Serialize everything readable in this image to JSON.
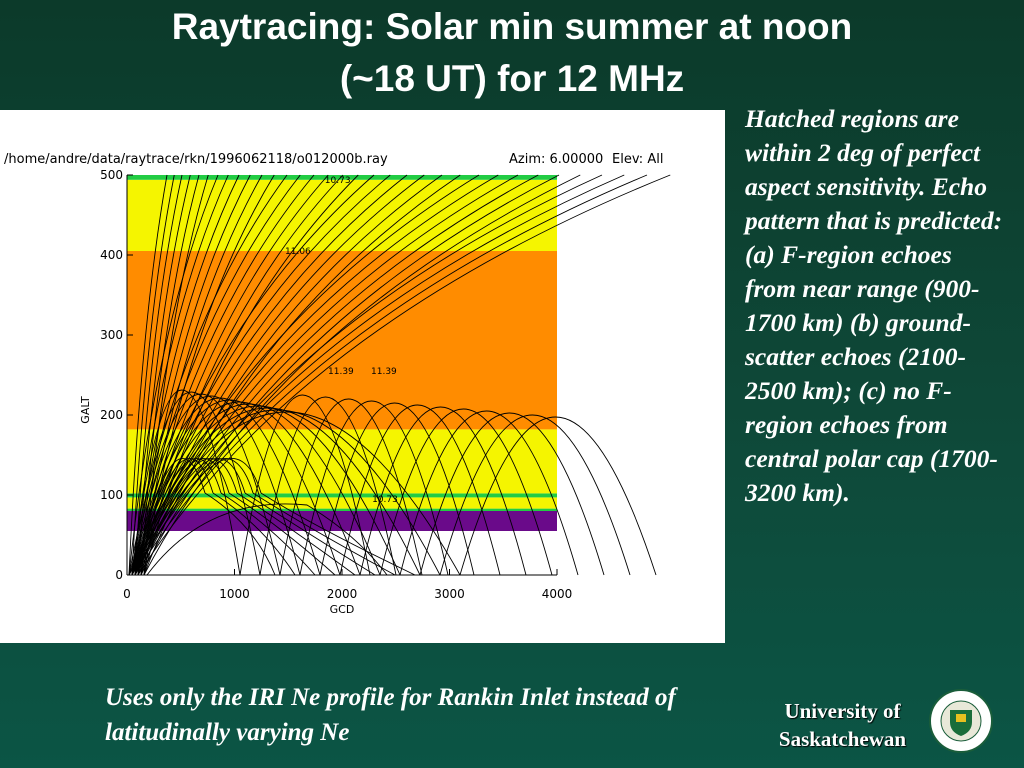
{
  "title": [
    "Raytracing: Solar min summer at noon",
    "(~18 UT) for 12 MHz"
  ],
  "figure": {
    "header": "/home/andre/data/raytrace/rkn/1996062118/o012000b.ray",
    "azim": "Azim:  6.00000",
    "elev": "Elev: All",
    "x_label": "GCD",
    "y_label": "GALT",
    "xlim": [
      0,
      4000
    ],
    "ylim": [
      0,
      500
    ],
    "xticks": [
      0,
      1000,
      2000,
      3000,
      4000
    ],
    "yticks": [
      0,
      100,
      200,
      300,
      400,
      500
    ],
    "bands": [
      {
        "from": 55,
        "to": 80,
        "color": "#6a0a8a"
      },
      {
        "from": 80,
        "to": 83,
        "color": "#22cc44"
      },
      {
        "from": 83,
        "to": 97,
        "color": "#f5f500"
      },
      {
        "from": 97,
        "to": 102,
        "color": "#22cc44"
      },
      {
        "from": 102,
        "to": 182,
        "color": "#f5f500"
      },
      {
        "from": 182,
        "to": 405,
        "color": "#ff8c00"
      },
      {
        "from": 405,
        "to": 494,
        "color": "#f5f500"
      },
      {
        "from": 494,
        "to": 500,
        "color": "#22cc44"
      }
    ],
    "annotations": [
      {
        "text": "10.73",
        "x": 1840,
        "y": 495
      },
      {
        "text": "11.06",
        "x": 1470,
        "y": 406
      },
      {
        "text": "11.39",
        "x": 1870,
        "y": 256
      },
      {
        "text": "11.39",
        "x": 2270,
        "y": 256
      },
      {
        "text": "10.73",
        "x": 2280,
        "y": 96
      }
    ]
  },
  "notes": "Hatched regions are within 2 deg of perfect aspect sensitivity. Echo pattern that is predicted: (a) F-region echoes from near range (900-1700 km) (b) ground-scatter echoes (2100-2500 km); (c) no F-region echoes from central polar cap (1700-3200 km).",
  "footnote": "Uses only the IRI Ne profile for Rankin Inlet instead of  latitudinally varying Ne",
  "university": "University of Saskatchewan"
}
